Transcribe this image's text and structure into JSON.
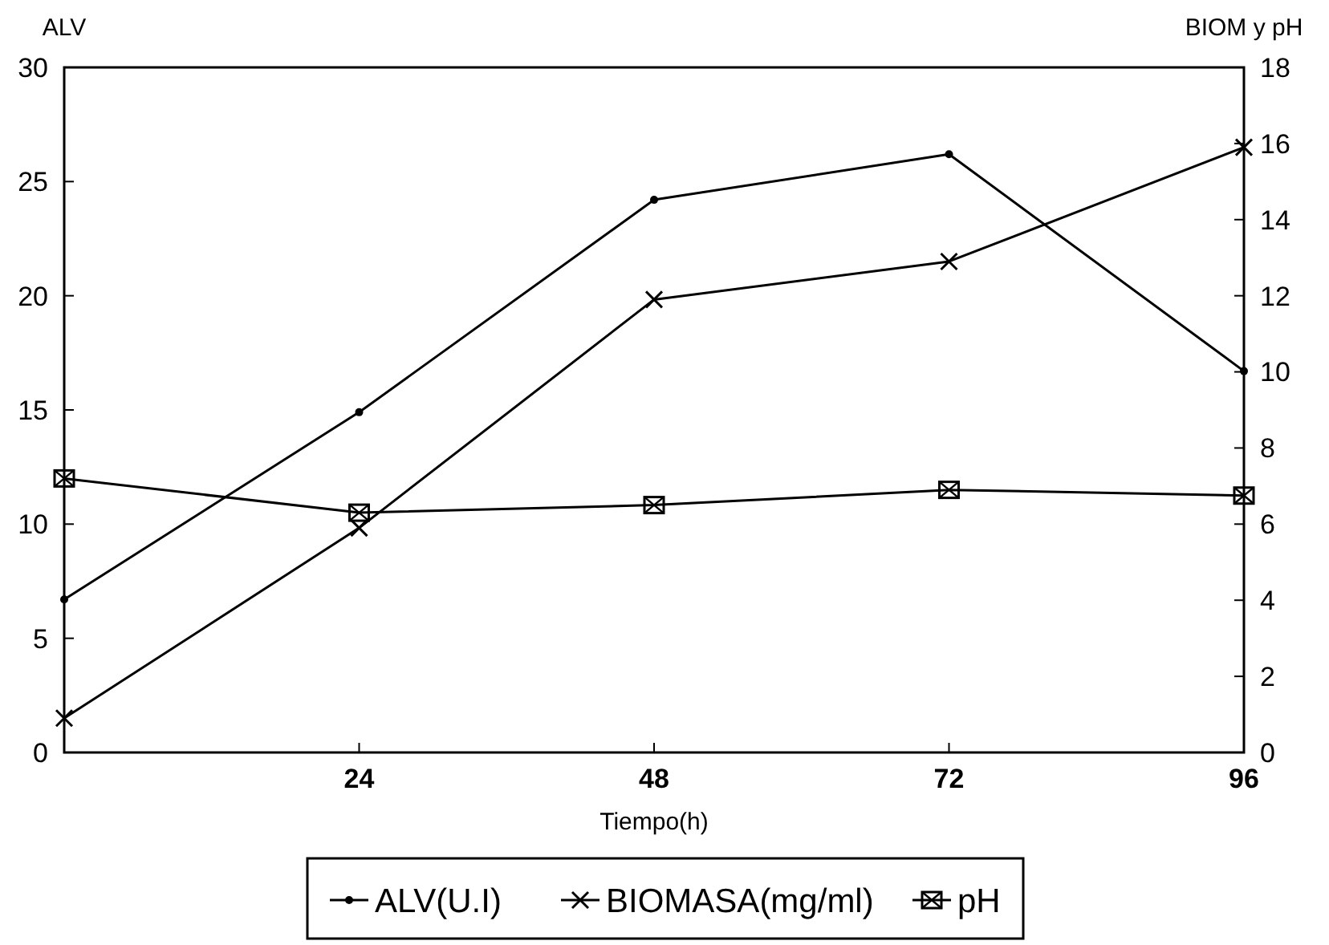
{
  "chart_data": {
    "type": "line",
    "xlabel": "Tiempo(h)",
    "ylabel": "ALV",
    "y2label": "BIOM y pH",
    "x": [
      0,
      24,
      48,
      72,
      96
    ],
    "xlim": [
      0,
      96
    ],
    "xticks": [
      24,
      48,
      72,
      96
    ],
    "ylim": [
      0,
      30
    ],
    "yticks": [
      0,
      5,
      10,
      15,
      20,
      25,
      30
    ],
    "y2lim": [
      0,
      18
    ],
    "y2ticks": [
      0,
      2,
      4,
      6,
      8,
      10,
      12,
      14,
      16,
      18
    ],
    "grid": false,
    "legend": "bottom",
    "line_style": "solid",
    "series": [
      {
        "name": "ALV(U.I)",
        "color": "#000000",
        "marker": "circle",
        "values": [
          6.7,
          14.9,
          24.2,
          26.2,
          16.7
        ]
      },
      {
        "name": "BIOMASA(mg/ml)",
        "color": "#000000",
        "marker": "cross",
        "axis": "y2",
        "values": [
          0.9,
          5.9,
          11.9,
          12.9,
          15.9
        ]
      },
      {
        "name": "pH",
        "color": "#000000",
        "marker": "square",
        "axis": "y2",
        "values": [
          7.2,
          6.3,
          6.5,
          6.9,
          6.75
        ]
      }
    ]
  }
}
